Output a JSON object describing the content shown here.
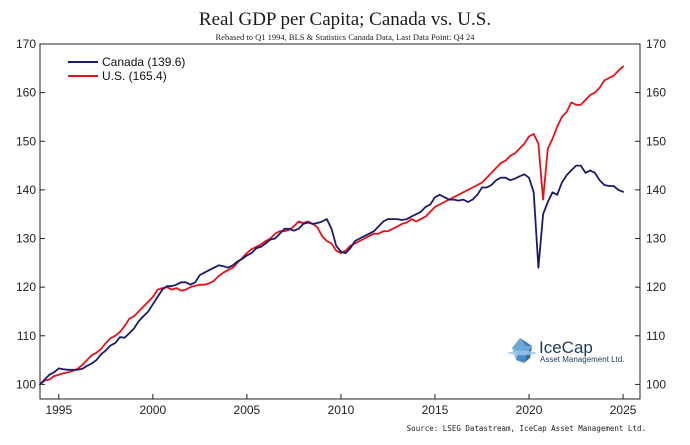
{
  "chart_data": {
    "type": "line",
    "title": "Real GDP per Capita; Canada vs. U.S.",
    "subtitle": "Rebased to Q1 1994, BLS & Statistics Canada Data, Last Data Point: Q4 24",
    "source": "Source: LSEG Datastream, IceCap Asset Management Ltd.",
    "xlabel": "",
    "ylabel": "",
    "xlim": [
      1994,
      2025.9
    ],
    "ylim": [
      97,
      170
    ],
    "x_ticks": [
      1995,
      2000,
      2005,
      2010,
      2015,
      2020,
      2025
    ],
    "x_tick_labels": [
      "1995",
      "2000",
      "2005",
      "2010",
      "2015",
      "2020",
      "2025"
    ],
    "y_ticks": [
      100,
      110,
      120,
      130,
      140,
      150,
      160,
      170
    ],
    "y_tick_labels": [
      "100",
      "110",
      "120",
      "130",
      "140",
      "150",
      "160",
      "170"
    ],
    "legend_position": "top-left",
    "series": [
      {
        "name": "Canada",
        "legend_label": "Canada (139.6)",
        "color": "#1a1a6e",
        "points": [
          [
            1994.0,
            100.0
          ],
          [
            1994.25,
            101.0
          ],
          [
            1994.5,
            102.0
          ],
          [
            1994.75,
            102.5
          ],
          [
            1995.0,
            103.3
          ],
          [
            1995.25,
            103.1
          ],
          [
            1995.5,
            103.0
          ],
          [
            1995.75,
            103.0
          ],
          [
            1996.0,
            103.0
          ],
          [
            1996.25,
            103.2
          ],
          [
            1996.5,
            103.8
          ],
          [
            1996.75,
            104.3
          ],
          [
            1997.0,
            105.0
          ],
          [
            1997.25,
            106.2
          ],
          [
            1997.5,
            107.0
          ],
          [
            1997.75,
            108.0
          ],
          [
            1998.0,
            108.5
          ],
          [
            1998.25,
            109.7
          ],
          [
            1998.5,
            109.6
          ],
          [
            1998.75,
            110.5
          ],
          [
            1999.0,
            111.5
          ],
          [
            1999.25,
            113.0
          ],
          [
            1999.5,
            114.0
          ],
          [
            1999.75,
            115.0
          ],
          [
            2000.0,
            116.5
          ],
          [
            2000.25,
            118.0
          ],
          [
            2000.5,
            119.5
          ],
          [
            2000.75,
            120.2
          ],
          [
            2001.0,
            120.2
          ],
          [
            2001.25,
            120.5
          ],
          [
            2001.5,
            121.0
          ],
          [
            2001.75,
            121.0
          ],
          [
            2002.0,
            120.5
          ],
          [
            2002.25,
            121.0
          ],
          [
            2002.5,
            122.5
          ],
          [
            2002.75,
            123.0
          ],
          [
            2003.0,
            123.5
          ],
          [
            2003.25,
            124.0
          ],
          [
            2003.5,
            124.5
          ],
          [
            2003.75,
            124.3
          ],
          [
            2004.0,
            124.0
          ],
          [
            2004.25,
            124.5
          ],
          [
            2004.5,
            125.3
          ],
          [
            2004.75,
            125.8
          ],
          [
            2005.0,
            126.5
          ],
          [
            2005.25,
            127.0
          ],
          [
            2005.5,
            128.0
          ],
          [
            2005.75,
            128.3
          ],
          [
            2006.0,
            129.0
          ],
          [
            2006.25,
            129.8
          ],
          [
            2006.5,
            130.0
          ],
          [
            2006.75,
            131.0
          ],
          [
            2007.0,
            132.0
          ],
          [
            2007.25,
            132.0
          ],
          [
            2007.5,
            131.6
          ],
          [
            2007.75,
            132.0
          ],
          [
            2008.0,
            133.0
          ],
          [
            2008.25,
            133.3
          ],
          [
            2008.5,
            133.0
          ],
          [
            2008.75,
            133.2
          ],
          [
            2009.0,
            133.5
          ],
          [
            2009.25,
            134.0
          ],
          [
            2009.5,
            132.0
          ],
          [
            2009.75,
            128.5
          ],
          [
            2010.0,
            127.3
          ],
          [
            2010.25,
            127.0
          ],
          [
            2010.5,
            128.0
          ],
          [
            2010.75,
            129.5
          ],
          [
            2011.0,
            130.0
          ],
          [
            2011.25,
            130.5
          ],
          [
            2011.5,
            131.0
          ],
          [
            2011.75,
            131.5
          ],
          [
            2012.0,
            132.5
          ],
          [
            2012.25,
            133.5
          ],
          [
            2012.5,
            134.0
          ],
          [
            2012.75,
            134.0
          ],
          [
            2013.0,
            134.0
          ],
          [
            2013.25,
            133.8
          ],
          [
            2013.5,
            134.0
          ],
          [
            2013.75,
            134.5
          ],
          [
            2014.0,
            135.0
          ],
          [
            2014.25,
            135.5
          ],
          [
            2014.5,
            136.5
          ],
          [
            2014.75,
            137.0
          ],
          [
            2015.0,
            138.5
          ],
          [
            2015.25,
            139.0
          ],
          [
            2015.5,
            138.5
          ],
          [
            2015.75,
            138.0
          ],
          [
            2016.0,
            138.0
          ],
          [
            2016.25,
            137.8
          ],
          [
            2016.5,
            138.0
          ],
          [
            2016.75,
            137.5
          ],
          [
            2017.0,
            138.0
          ],
          [
            2017.25,
            139.0
          ],
          [
            2017.5,
            140.5
          ],
          [
            2017.75,
            140.5
          ],
          [
            2018.0,
            141.0
          ],
          [
            2018.25,
            142.0
          ],
          [
            2018.5,
            142.5
          ],
          [
            2018.75,
            142.5
          ],
          [
            2019.0,
            142.0
          ],
          [
            2019.25,
            142.3
          ],
          [
            2019.5,
            142.8
          ],
          [
            2019.75,
            143.2
          ],
          [
            2020.0,
            142.5
          ],
          [
            2020.25,
            139.5
          ],
          [
            2020.5,
            124.0
          ],
          [
            2020.75,
            135.0
          ],
          [
            2021.0,
            137.5
          ],
          [
            2021.25,
            139.5
          ],
          [
            2021.5,
            139.0
          ],
          [
            2021.75,
            141.5
          ],
          [
            2022.0,
            143.0
          ],
          [
            2022.25,
            144.0
          ],
          [
            2022.5,
            145.0
          ],
          [
            2022.75,
            145.0
          ],
          [
            2023.0,
            143.5
          ],
          [
            2023.25,
            144.0
          ],
          [
            2023.5,
            143.5
          ],
          [
            2023.75,
            142.0
          ],
          [
            2024.0,
            141.0
          ],
          [
            2024.25,
            140.8
          ],
          [
            2024.5,
            140.8
          ],
          [
            2024.75,
            140.0
          ],
          [
            2025.0,
            139.6
          ]
        ]
      },
      {
        "name": "U.S.",
        "legend_label": "U.S. (165.4)",
        "color": "#e8111a",
        "points": [
          [
            1994.0,
            100.0
          ],
          [
            1994.25,
            100.8
          ],
          [
            1994.5,
            101.0
          ],
          [
            1994.75,
            101.7
          ],
          [
            1995.0,
            102.0
          ],
          [
            1995.25,
            102.3
          ],
          [
            1995.5,
            102.5
          ],
          [
            1995.75,
            102.8
          ],
          [
            1996.0,
            103.2
          ],
          [
            1996.25,
            104.0
          ],
          [
            1996.5,
            105.0
          ],
          [
            1996.75,
            106.0
          ],
          [
            1997.0,
            106.5
          ],
          [
            1997.25,
            107.3
          ],
          [
            1997.5,
            108.5
          ],
          [
            1997.75,
            109.5
          ],
          [
            1998.0,
            110.0
          ],
          [
            1998.25,
            110.8
          ],
          [
            1998.5,
            112.0
          ],
          [
            1998.75,
            113.5
          ],
          [
            1999.0,
            114.0
          ],
          [
            1999.25,
            115.0
          ],
          [
            1999.5,
            116.0
          ],
          [
            1999.75,
            117.0
          ],
          [
            2000.0,
            118.0
          ],
          [
            2000.25,
            119.5
          ],
          [
            2000.5,
            119.8
          ],
          [
            2000.75,
            120.0
          ],
          [
            2001.0,
            119.5
          ],
          [
            2001.25,
            119.8
          ],
          [
            2001.5,
            119.3
          ],
          [
            2001.75,
            119.5
          ],
          [
            2002.0,
            120.0
          ],
          [
            2002.25,
            120.3
          ],
          [
            2002.5,
            120.5
          ],
          [
            2002.75,
            120.5
          ],
          [
            2003.0,
            120.8
          ],
          [
            2003.25,
            121.3
          ],
          [
            2003.5,
            122.3
          ],
          [
            2003.75,
            123.0
          ],
          [
            2004.0,
            123.5
          ],
          [
            2004.25,
            124.0
          ],
          [
            2004.5,
            125.0
          ],
          [
            2004.75,
            126.0
          ],
          [
            2005.0,
            127.0
          ],
          [
            2005.25,
            127.8
          ],
          [
            2005.5,
            128.3
          ],
          [
            2005.75,
            128.8
          ],
          [
            2006.0,
            129.5
          ],
          [
            2006.25,
            130.0
          ],
          [
            2006.5,
            131.0
          ],
          [
            2006.75,
            131.5
          ],
          [
            2007.0,
            131.5
          ],
          [
            2007.25,
            131.8
          ],
          [
            2007.5,
            132.5
          ],
          [
            2007.75,
            133.5
          ],
          [
            2008.0,
            133.2
          ],
          [
            2008.25,
            133.5
          ],
          [
            2008.5,
            133.0
          ],
          [
            2008.75,
            132.3
          ],
          [
            2009.0,
            130.5
          ],
          [
            2009.25,
            129.5
          ],
          [
            2009.5,
            129.0
          ],
          [
            2009.75,
            127.5
          ],
          [
            2010.0,
            127.0
          ],
          [
            2010.25,
            127.5
          ],
          [
            2010.5,
            128.5
          ],
          [
            2010.75,
            129.0
          ],
          [
            2011.0,
            129.5
          ],
          [
            2011.25,
            130.0
          ],
          [
            2011.5,
            130.5
          ],
          [
            2011.75,
            131.0
          ],
          [
            2012.0,
            131.0
          ],
          [
            2012.25,
            131.5
          ],
          [
            2012.5,
            131.5
          ],
          [
            2012.75,
            132.0
          ],
          [
            2013.0,
            132.5
          ],
          [
            2013.25,
            133.0
          ],
          [
            2013.5,
            133.3
          ],
          [
            2013.75,
            134.0
          ],
          [
            2014.0,
            133.5
          ],
          [
            2014.25,
            134.0
          ],
          [
            2014.5,
            134.5
          ],
          [
            2014.75,
            135.5
          ],
          [
            2015.0,
            136.5
          ],
          [
            2015.25,
            137.0
          ],
          [
            2015.5,
            137.5
          ],
          [
            2015.75,
            138.0
          ],
          [
            2016.0,
            138.5
          ],
          [
            2016.25,
            139.0
          ],
          [
            2016.5,
            139.5
          ],
          [
            2016.75,
            140.0
          ],
          [
            2017.0,
            140.5
          ],
          [
            2017.25,
            141.0
          ],
          [
            2017.5,
            141.5
          ],
          [
            2017.75,
            142.5
          ],
          [
            2018.0,
            143.5
          ],
          [
            2018.25,
            144.5
          ],
          [
            2018.5,
            145.5
          ],
          [
            2018.75,
            146.0
          ],
          [
            2019.0,
            147.0
          ],
          [
            2019.25,
            147.5
          ],
          [
            2019.5,
            148.5
          ],
          [
            2019.75,
            149.5
          ],
          [
            2020.0,
            151.0
          ],
          [
            2020.25,
            151.5
          ],
          [
            2020.5,
            149.5
          ],
          [
            2020.75,
            138.0
          ],
          [
            2021.0,
            148.5
          ],
          [
            2021.25,
            150.5
          ],
          [
            2021.5,
            153.0
          ],
          [
            2021.75,
            155.0
          ],
          [
            2022.0,
            156.0
          ],
          [
            2022.25,
            158.0
          ],
          [
            2022.5,
            157.5
          ],
          [
            2022.75,
            157.5
          ],
          [
            2023.0,
            158.5
          ],
          [
            2023.25,
            159.5
          ],
          [
            2023.5,
            160.0
          ],
          [
            2023.75,
            161.0
          ],
          [
            2024.0,
            162.5
          ],
          [
            2024.25,
            163.0
          ],
          [
            2024.5,
            163.5
          ],
          [
            2024.75,
            164.5
          ],
          [
            2025.0,
            165.4
          ]
        ]
      }
    ]
  },
  "brand": {
    "name": "IceCap",
    "tagline": "Asset Management Ltd."
  },
  "colors": {
    "canada": "#1a1a6e",
    "us": "#e8111a",
    "brand": "#1f3a5c"
  }
}
